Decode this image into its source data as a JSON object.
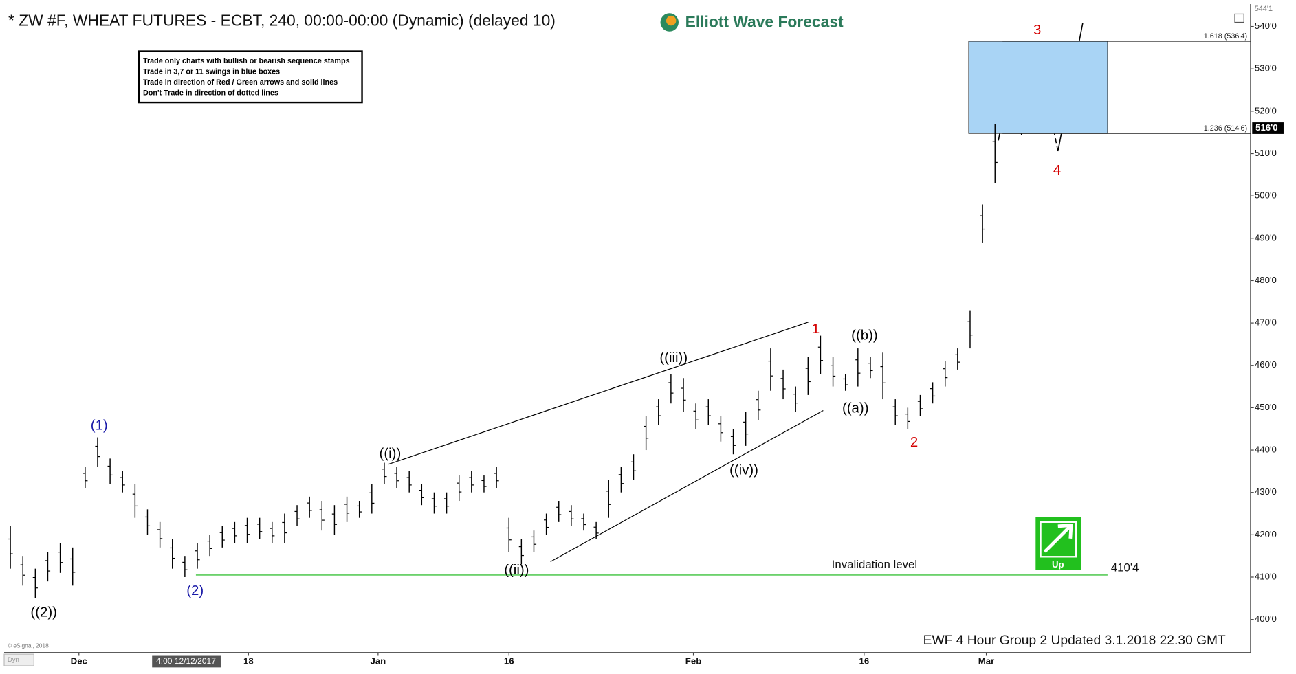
{
  "chart_data": {
    "type": "range-bar",
    "title": "* ZW #F, WHEAT FUTURES - ECBT, 240, 00:00-00:00 (Dynamic) (delayed 10)",
    "logo_text": "Elliott Wave Forecast",
    "notes": [
      "Trade only charts with bullish or bearish sequence stamps",
      "Trade in 3,7 or 11 swings in blue boxes",
      "Trade in direction of Red / Green arrows and solid lines",
      "Don't Trade in direction of dotted lines"
    ],
    "footer": "EWF 4 Hour Group 2 Updated 3.1.2018 22.30 GMT",
    "credit": "© eSignal, 2018",
    "dyn_label": "Dyn",
    "crosshair_label": "4:00 12/12/2017",
    "signal_label": "Up",
    "color": "#000000",
    "high": [
      422,
      415,
      412,
      416,
      418,
      417,
      436,
      443,
      438,
      435,
      432,
      426,
      423,
      419,
      415,
      418,
      420,
      422,
      423,
      424,
      424,
      423,
      425,
      427,
      429,
      428,
      427,
      429,
      428,
      432,
      437,
      436,
      435,
      432,
      430,
      430,
      434,
      435,
      434,
      436,
      424,
      419,
      421,
      425,
      428,
      427,
      425,
      423,
      433,
      436,
      439,
      448,
      452,
      458,
      457,
      451,
      452,
      448,
      445,
      449,
      454,
      464,
      459,
      455,
      462,
      467,
      462,
      458,
      464,
      462,
      463,
      452,
      450,
      453,
      456,
      461,
      464,
      473,
      498,
      517
    ],
    "low": [
      412,
      408,
      405,
      409,
      411,
      408,
      431,
      436,
      432,
      430,
      424,
      420,
      417,
      412,
      410,
      412,
      415,
      417,
      418,
      418,
      419,
      418,
      418,
      422,
      424,
      421,
      420,
      423,
      424,
      425,
      432,
      431,
      430,
      427,
      425,
      425,
      428,
      430,
      430,
      431,
      416,
      413,
      416,
      420,
      423,
      422,
      421,
      419,
      424,
      430,
      433,
      440,
      446,
      451,
      449,
      445,
      446,
      442,
      439,
      441,
      447,
      454,
      452,
      449,
      453,
      458,
      455,
      454,
      455,
      457,
      452,
      446,
      445,
      448,
      451,
      455,
      459,
      464,
      489,
      503
    ],
    "xlim": [
      0,
      100
    ],
    "xticks": [
      {
        "value": 6,
        "label": "Dec"
      },
      {
        "value": 19.6,
        "label": "18"
      },
      {
        "value": 30,
        "label": "Jan"
      },
      {
        "value": 40.5,
        "label": "16"
      },
      {
        "value": 55.3,
        "label": "Feb"
      },
      {
        "value": 69,
        "label": "16"
      },
      {
        "value": 78.8,
        "label": "Mar"
      }
    ],
    "ylim": [
      392.2,
      544.3
    ],
    "yticks": [
      {
        "value": 400,
        "label": "400'0"
      },
      {
        "value": 410,
        "label": "410'0"
      },
      {
        "value": 420,
        "label": "420'0"
      },
      {
        "value": 430,
        "label": "430'0"
      },
      {
        "value": 440,
        "label": "440'0"
      },
      {
        "value": 450,
        "label": "450'0"
      },
      {
        "value": 460,
        "label": "460'0"
      },
      {
        "value": 470,
        "label": "470'0"
      },
      {
        "value": 480,
        "label": "480'0"
      },
      {
        "value": 490,
        "label": "490'0"
      },
      {
        "value": 500,
        "label": "500'0"
      },
      {
        "value": 510,
        "label": "510'0"
      },
      {
        "value": 520,
        "label": "520'0"
      },
      {
        "value": 530,
        "label": "530'0"
      },
      {
        "value": 540,
        "label": "540'0"
      }
    ],
    "top_price": {
      "value": 544.125,
      "label": "544'1"
    },
    "last_price": {
      "value": 516,
      "label": "516'0"
    },
    "fib_levels": [
      {
        "value": 536.5,
        "label": "1.618 (536'4)"
      },
      {
        "value": 514.75,
        "label": "1.236 (514'6)"
      }
    ],
    "box_color": "#a9d4f5",
    "invalidation": {
      "text": "Invalidation level",
      "value": 410.5,
      "label": "410'4",
      "color": "#3cc23c"
    },
    "annotations": [
      {
        "text": "((2))",
        "color": "#000000"
      },
      {
        "text": "(1)",
        "color": "#1a1aa8"
      },
      {
        "text": "(2)",
        "color": "#1a1aa8"
      },
      {
        "text": "((i))",
        "color": "#000000"
      },
      {
        "text": "((ii))",
        "color": "#000000"
      },
      {
        "text": "((iii))",
        "color": "#000000"
      },
      {
        "text": "((iv))",
        "color": "#000000"
      },
      {
        "text": "1",
        "color": "#d40000"
      },
      {
        "text": "((b))",
        "color": "#000000"
      },
      {
        "text": "((a))",
        "color": "#000000"
      },
      {
        "text": "2",
        "color": "#d40000"
      },
      {
        "text": "3",
        "color": "#d40000"
      },
      {
        "text": "4",
        "color": "#d40000"
      }
    ]
  }
}
